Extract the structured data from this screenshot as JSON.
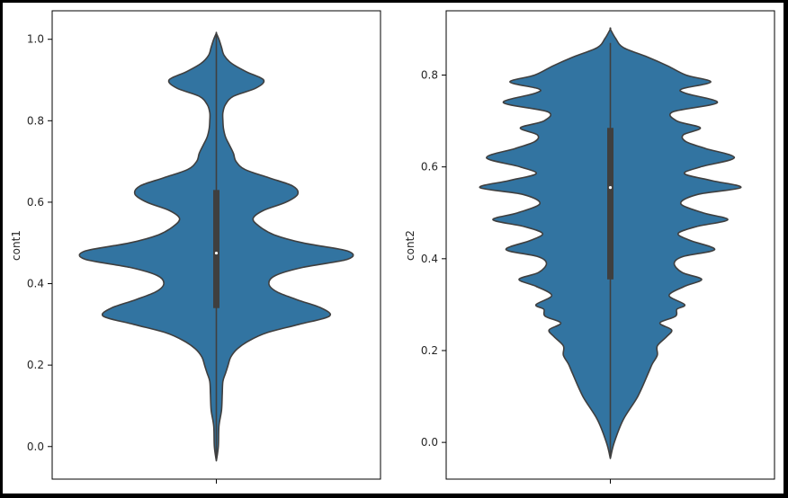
{
  "chart_data": [
    {
      "type": "violin",
      "title": "",
      "xlabel": "",
      "ylabel": "cont1",
      "ylim": [
        -0.08,
        1.07
      ],
      "yticks": [
        0.0,
        0.2,
        0.4,
        0.6,
        0.8,
        1.0
      ],
      "ytick_labels": [
        "0.0",
        "0.2",
        "0.4",
        "0.6",
        "0.8",
        "1.0"
      ],
      "fill_color": "#3274a1",
      "edge_color": "#3f3f3f",
      "box": {
        "q1": 0.34,
        "median": 0.475,
        "q3": 0.63,
        "whisker_low": -0.03,
        "whisker_high": 1.01
      },
      "density": [
        [
          -0.035,
          0.0
        ],
        [
          0.0,
          0.015
        ],
        [
          0.05,
          0.02
        ],
        [
          0.09,
          0.04
        ],
        [
          0.13,
          0.045
        ],
        [
          0.16,
          0.05
        ],
        [
          0.18,
          0.07
        ],
        [
          0.2,
          0.09
        ],
        [
          0.22,
          0.11
        ],
        [
          0.24,
          0.16
        ],
        [
          0.26,
          0.25
        ],
        [
          0.28,
          0.39
        ],
        [
          0.3,
          0.63
        ],
        [
          0.32,
          0.86
        ],
        [
          0.34,
          0.8
        ],
        [
          0.36,
          0.62
        ],
        [
          0.38,
          0.46
        ],
        [
          0.4,
          0.4
        ],
        [
          0.42,
          0.45
        ],
        [
          0.44,
          0.66
        ],
        [
          0.46,
          1.0
        ],
        [
          0.48,
          1.0
        ],
        [
          0.5,
          0.66
        ],
        [
          0.52,
          0.44
        ],
        [
          0.54,
          0.33
        ],
        [
          0.56,
          0.28
        ],
        [
          0.58,
          0.36
        ],
        [
          0.6,
          0.53
        ],
        [
          0.62,
          0.62
        ],
        [
          0.64,
          0.58
        ],
        [
          0.66,
          0.4
        ],
        [
          0.68,
          0.22
        ],
        [
          0.7,
          0.15
        ],
        [
          0.72,
          0.13
        ],
        [
          0.74,
          0.1
        ],
        [
          0.76,
          0.07
        ],
        [
          0.78,
          0.055
        ],
        [
          0.8,
          0.05
        ],
        [
          0.82,
          0.05
        ],
        [
          0.84,
          0.07
        ],
        [
          0.86,
          0.13
        ],
        [
          0.88,
          0.3
        ],
        [
          0.9,
          0.36
        ],
        [
          0.92,
          0.23
        ],
        [
          0.94,
          0.12
        ],
        [
          0.96,
          0.06
        ],
        [
          0.98,
          0.04
        ],
        [
          1.0,
          0.02
        ],
        [
          1.015,
          0.0
        ]
      ]
    },
    {
      "type": "violin",
      "title": "",
      "xlabel": "",
      "ylabel": "cont2",
      "ylim": [
        -0.08,
        0.94
      ],
      "yticks": [
        0.0,
        0.2,
        0.4,
        0.6,
        0.8
      ],
      "ytick_labels": [
        "0.0",
        "0.2",
        "0.4",
        "0.6",
        "0.8"
      ],
      "fill_color": "#3274a1",
      "edge_color": "#3f3f3f",
      "box": {
        "q1": 0.355,
        "median": 0.555,
        "q3": 0.685,
        "whisker_low": -0.03,
        "whisker_high": 0.87
      },
      "density": [
        [
          -0.035,
          0.0
        ],
        [
          0.0,
          0.03
        ],
        [
          0.05,
          0.1
        ],
        [
          0.1,
          0.21
        ],
        [
          0.15,
          0.29
        ],
        [
          0.17,
          0.32
        ],
        [
          0.19,
          0.36
        ],
        [
          0.21,
          0.36
        ],
        [
          0.23,
          0.43
        ],
        [
          0.245,
          0.47
        ],
        [
          0.26,
          0.38
        ],
        [
          0.275,
          0.5
        ],
        [
          0.29,
          0.51
        ],
        [
          0.3,
          0.57
        ],
        [
          0.32,
          0.45
        ],
        [
          0.34,
          0.57
        ],
        [
          0.355,
          0.7
        ],
        [
          0.37,
          0.55
        ],
        [
          0.39,
          0.49
        ],
        [
          0.405,
          0.56
        ],
        [
          0.42,
          0.8
        ],
        [
          0.44,
          0.61
        ],
        [
          0.455,
          0.52
        ],
        [
          0.47,
          0.66
        ],
        [
          0.485,
          0.9
        ],
        [
          0.5,
          0.71
        ],
        [
          0.52,
          0.54
        ],
        [
          0.54,
          0.67
        ],
        [
          0.555,
          1.0
        ],
        [
          0.57,
          0.78
        ],
        [
          0.585,
          0.57
        ],
        [
          0.6,
          0.69
        ],
        [
          0.62,
          0.95
        ],
        [
          0.64,
          0.73
        ],
        [
          0.655,
          0.58
        ],
        [
          0.67,
          0.56
        ],
        [
          0.685,
          0.69
        ],
        [
          0.7,
          0.51
        ],
        [
          0.72,
          0.48
        ],
        [
          0.74,
          0.82
        ],
        [
          0.76,
          0.58
        ],
        [
          0.77,
          0.55
        ],
        [
          0.785,
          0.77
        ],
        [
          0.8,
          0.58
        ],
        [
          0.82,
          0.44
        ],
        [
          0.84,
          0.28
        ],
        [
          0.86,
          0.1
        ],
        [
          0.88,
          0.04
        ],
        [
          0.9,
          0.0
        ]
      ]
    }
  ]
}
